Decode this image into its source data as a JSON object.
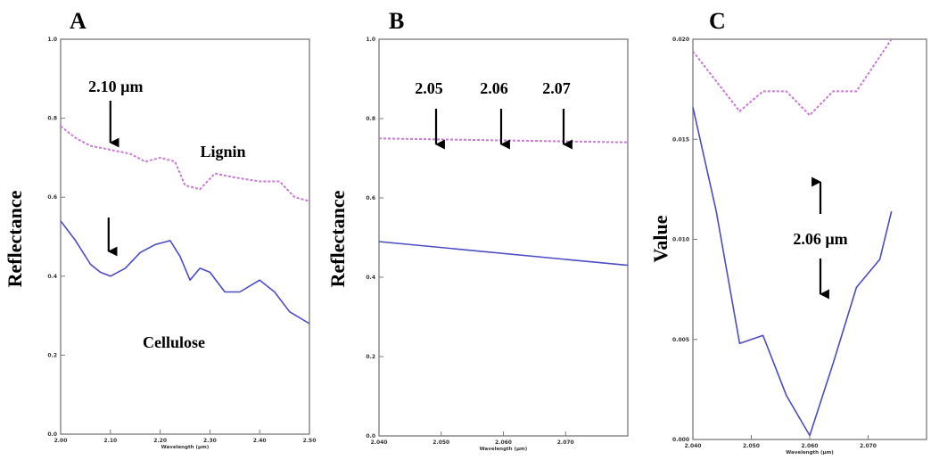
{
  "colors": {
    "cellulose": "#4b4bc4",
    "lignin": "#c87ad6",
    "frame": "#7a7a7a",
    "arrow": "#000000"
  },
  "chart_data": [
    {
      "panel": "A",
      "type": "line",
      "ylabel": "Reflectance",
      "xlabel": "Wavelength (µm)",
      "xlim": [
        2.0,
        2.5
      ],
      "ylim": [
        0.0,
        1.0
      ],
      "xticks": [
        "2.00",
        "2.10",
        "2.20",
        "2.30",
        "2.40",
        "2.50"
      ],
      "yticks": [
        "0.0",
        "0.2",
        "0.4",
        "0.6",
        "0.8",
        "1.0"
      ],
      "series": [
        {
          "name": "Lignin",
          "style": "dashed",
          "x": [
            2.0,
            2.03,
            2.06,
            2.1,
            2.14,
            2.17,
            2.2,
            2.23,
            2.25,
            2.28,
            2.31,
            2.35,
            2.4,
            2.44,
            2.47,
            2.5
          ],
          "y": [
            0.78,
            0.75,
            0.73,
            0.72,
            0.71,
            0.69,
            0.7,
            0.69,
            0.63,
            0.62,
            0.66,
            0.65,
            0.64,
            0.64,
            0.6,
            0.59
          ]
        },
        {
          "name": "Cellulose",
          "style": "solid",
          "x": [
            2.0,
            2.03,
            2.06,
            2.08,
            2.1,
            2.13,
            2.16,
            2.19,
            2.22,
            2.24,
            2.26,
            2.28,
            2.3,
            2.33,
            2.36,
            2.4,
            2.43,
            2.46,
            2.5
          ],
          "y": [
            0.54,
            0.49,
            0.43,
            0.41,
            0.4,
            0.42,
            0.46,
            0.48,
            0.49,
            0.45,
            0.39,
            0.42,
            0.41,
            0.36,
            0.36,
            0.39,
            0.36,
            0.31,
            0.28
          ]
        }
      ],
      "annotations": [
        {
          "text": "2.10 µm",
          "x": 2.1
        },
        {
          "text": "Lignin"
        },
        {
          "text": "Cellulose"
        }
      ],
      "arrows_x": [
        2.1,
        2.1
      ]
    },
    {
      "panel": "B",
      "type": "line",
      "ylabel": "Reflectance",
      "xlabel": "Wavelength (µm)",
      "xlim": [
        2.04,
        2.08
      ],
      "ylim": [
        0.0,
        1.0
      ],
      "xticks": [
        "2.040",
        "2.050",
        "2.060",
        "2.070"
      ],
      "yticks": [
        "0.0",
        "0.2",
        "0.4",
        "0.6",
        "0.8",
        "1.0"
      ],
      "series": [
        {
          "name": "Lignin",
          "style": "dashed",
          "x": [
            2.04,
            2.08
          ],
          "y": [
            0.75,
            0.74
          ]
        },
        {
          "name": "Cellulose",
          "style": "solid",
          "x": [
            2.04,
            2.08
          ],
          "y": [
            0.49,
            0.43
          ]
        }
      ],
      "annotations": [
        {
          "text": "2.05",
          "x": 2.05
        },
        {
          "text": "2.06",
          "x": 2.06
        },
        {
          "text": "2.07",
          "x": 2.07
        }
      ]
    },
    {
      "panel": "C",
      "type": "line",
      "ylabel": "Value",
      "xlabel": "Wavelength (µm)",
      "xlim": [
        2.04,
        2.08
      ],
      "ylim": [
        0.0,
        1.0
      ],
      "xticks": [
        "2.040",
        "2.050",
        "2.060",
        "2.070"
      ],
      "yticks": [
        "0.000",
        "0.005",
        "0.010",
        "0.015",
        "0.020"
      ],
      "series": [
        {
          "name": "Lignin",
          "style": "dashed",
          "x": [
            2.04,
            2.048,
            2.052,
            2.056,
            2.06,
            2.064,
            2.068,
            2.074
          ],
          "y": [
            0.97,
            0.82,
            0.87,
            0.87,
            0.81,
            0.87,
            0.87,
            1.0
          ]
        },
        {
          "name": "Cellulose",
          "style": "solid",
          "x": [
            2.04,
            2.044,
            2.048,
            2.052,
            2.056,
            2.06,
            2.064,
            2.068,
            2.072,
            2.074
          ],
          "y": [
            0.83,
            0.57,
            0.24,
            0.26,
            0.11,
            0.01,
            0.19,
            0.38,
            0.45,
            0.57
          ]
        }
      ],
      "annotations": [
        {
          "text": "2.06 µm",
          "x": 2.06
        }
      ]
    }
  ],
  "labels": {
    "panel_a": "A",
    "panel_b": "B",
    "panel_c": "C"
  }
}
